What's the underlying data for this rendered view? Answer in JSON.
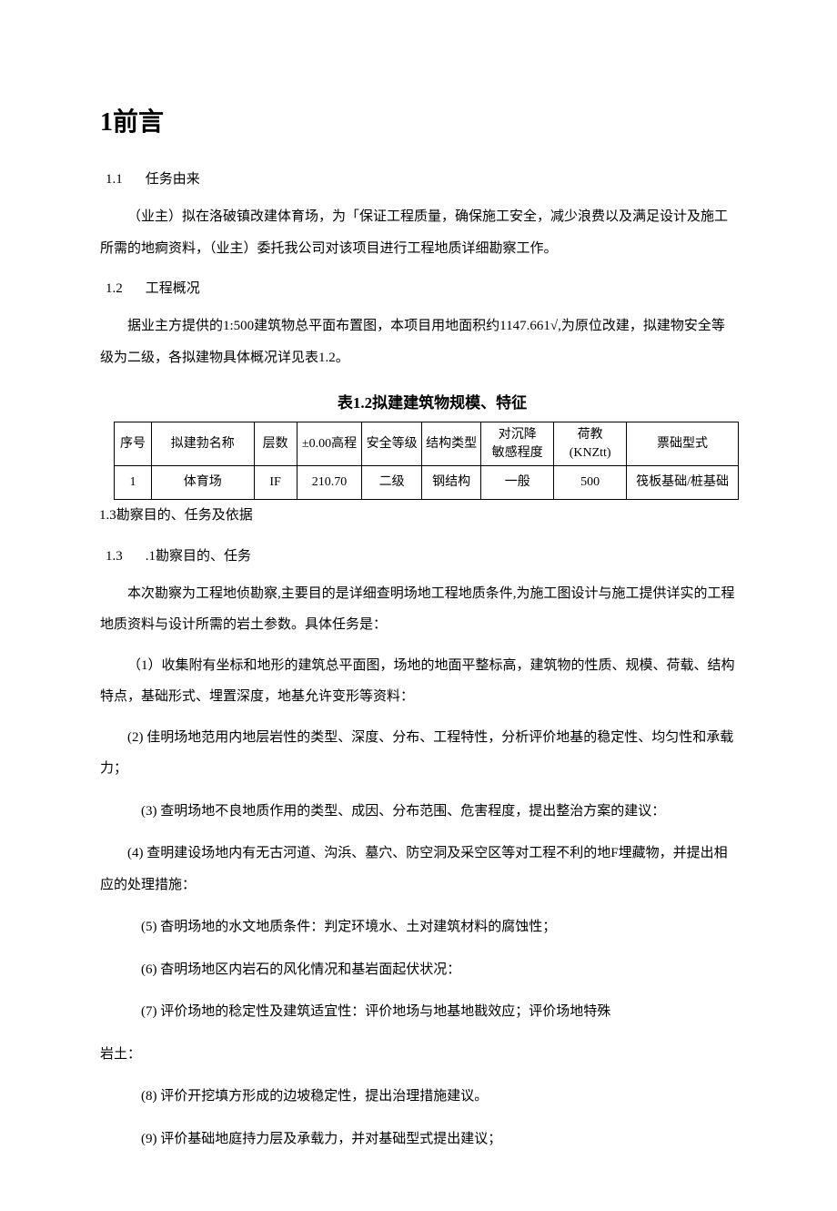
{
  "heading": "1前言",
  "sec11": {
    "num": "1.1",
    "title": "任务由来"
  },
  "p1": "（业主）拟在洛破镇改建体育场，为「保证工程质量，确保施工安全，减少浪费以及满足设计及施工所需的地痾资料，（业主）委托我公司对该项目进行工程地质详细勘察工作。",
  "sec12": {
    "num": "1.2",
    "title": "工程概况"
  },
  "p2": "据业主方提供的1:500建筑物总平面布置图，本项目用地面积约1147.661√,为原位改建，拟建物安全等级为二级，各拟建物具体概况详见表1.2。",
  "table": {
    "caption": "表1.2拟建建筑物规模、特征",
    "headers": [
      "序号",
      "拟建勃名称",
      "层数",
      "±0.00高程",
      "安全等级",
      "结构类型",
      "对沉降\n敏感程度",
      "荷教\n(KNZtt)",
      "票础型式"
    ],
    "rows": [
      [
        "1",
        "体育场",
        "IF",
        "210.70",
        "二级",
        "钢结构",
        "一般",
        "500",
        "筏板基础/桩基础"
      ]
    ]
  },
  "after_table": "1.3勘察目的、任务及依据",
  "sec13": {
    "num": "1.3",
    "title": ".1勘察目的、任务"
  },
  "p3": "本次勘察为工程地侦勘察,主要目的是详细查明场地工程地质条件,为施工图设计与施工提供详实的工程地质资料与设计所需的岩土参数。具体任务是：",
  "items": {
    "i1": "（1）收集附有坐标和地形的建筑总平面图，场地的地面平整标高，建筑物的性质、规模、荷载、结构特点，基础形式、埋置深度，地基允许变形等资料：",
    "i2": "(2)  佳明场地范用内地层岩性的类型、深度、分布、工程特性，分析评价地基的稳定性、均匀性和承载力；",
    "i3": "(3)  查明场地不良地质作用的类型、成因、分布范围、危害程度，提出整治方案的建议：",
    "i4": "(4)  查明建设场地内有无古河道、沟浜、墓穴、防空洞及采空区等对工程不利的地F埋藏物，并提出相应的处理措施：",
    "i5": "(5)  杳明场地的水文地质条件：判定环境水、土对建筑材料的腐蚀性；",
    "i6": "(6)  杳明场地区内岩石的风化情况和基岩面起伏状况：",
    "i7": "(7)  评价场地的稔定性及建筑适宜性：评价地场与地基地戡效应；评价场地特殊",
    "i7c": "岩土：",
    "i8": "(8)  评价开挖填方形成的边坡稳定性，提出治理措施建议。",
    "i9": "(9) 评价基础地庭持力层及承载力，并对基础型式提出建议；"
  }
}
